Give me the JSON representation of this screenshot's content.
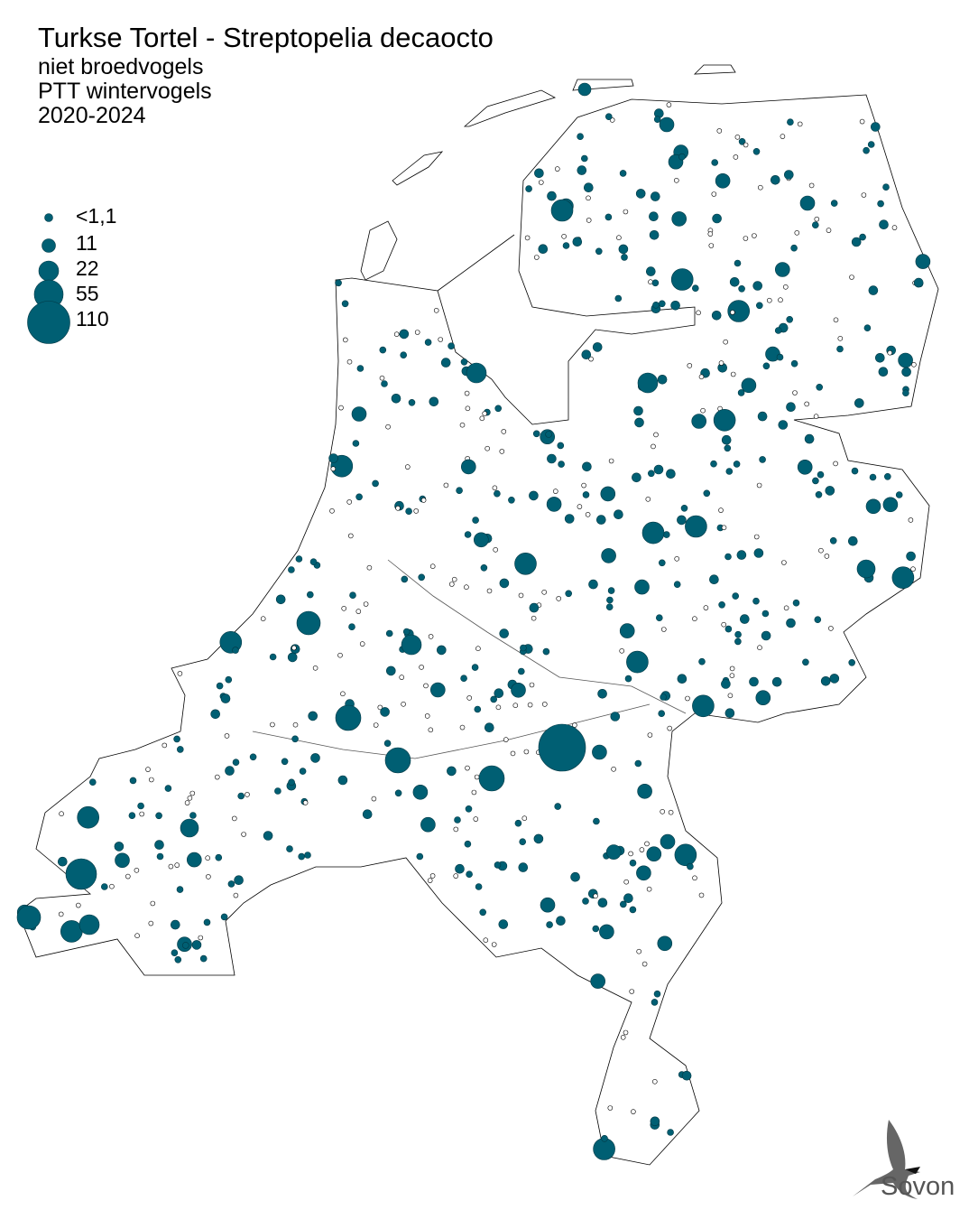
{
  "title": "Turkse Tortel - Streptopelia decaocto",
  "subtitles": [
    "niet broedvogels",
    "PTT wintervogels",
    "2020-2024"
  ],
  "legend": {
    "items": [
      {
        "label": "<1,1",
        "value": 1.1
      },
      {
        "label": "11",
        "value": 11
      },
      {
        "label": "22",
        "value": 22
      },
      {
        "label": "55",
        "value": 55
      },
      {
        "label": "110",
        "value": 110
      }
    ]
  },
  "colors": {
    "dot_fill": "#005f73",
    "dot_stroke": "#003844",
    "outline": "#000000",
    "empty_dot": "#ffffff"
  },
  "logo": {
    "text": "Sovon",
    "icon": "swallow-icon"
  }
}
